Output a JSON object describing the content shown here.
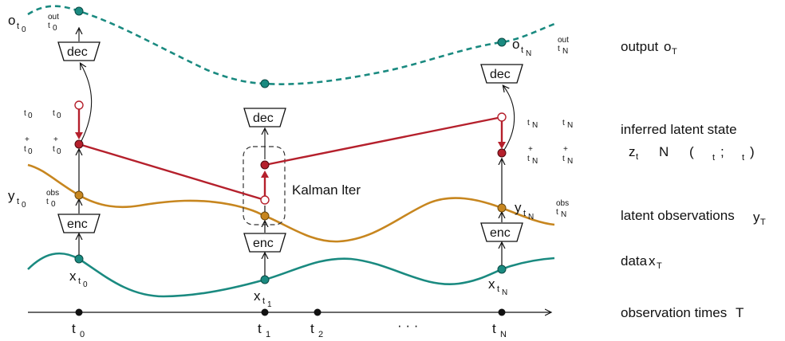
{
  "colors": {
    "output_curve": "#1a8a80",
    "output_dot": "#1a8a80",
    "latent_obs_curve": "#c7861f",
    "latent_obs_dot": "#c7861f",
    "data_curve": "#1a8a80",
    "data_dot": "#1a8a80",
    "kalman": "#b5202c",
    "axis": "#111111"
  },
  "legend_rows": {
    "output": "output",
    "output_sym": "o",
    "output_sub": "T",
    "inferred": "inferred latent state",
    "inferred_formula_z": "z",
    "inferred_formula_t": "t",
    "inferred_formula_N": "N",
    "inferred_formula_lp": "(",
    "inferred_formula_sub1": "t",
    "inferred_formula_semi": ";",
    "inferred_formula_sub2": "t",
    "inferred_formula_rp": ")",
    "latent_obs": "latent observations",
    "latent_obs_sym": "y",
    "latent_obs_sub": "T",
    "data": "data",
    "data_sym": "x",
    "data_sub": "T",
    "times": "observation times",
    "times_sym": "T"
  },
  "boxes": {
    "dec": "dec",
    "enc": "enc"
  },
  "kalman_label": "Kalman  lter",
  "ellipsis": "· · ·",
  "time_labels": {
    "t0": "t",
    "t0_sub": "0",
    "t1": "t",
    "t1_sub": "1",
    "t2": "t",
    "t2_sub": "2",
    "tN": "t",
    "tN_sub": "N"
  },
  "node_labels": {
    "o_t0_o": "o",
    "o_t0_t": "t",
    "o_t0_0": "0",
    "o_t0_out": "out",
    "o_t0_tsub": "t",
    "o_t0_tsub0": "0",
    "o_tN_o": "o",
    "o_tN_t": "t",
    "o_tN_N": "N",
    "o_tN_out": "out",
    "o_tN_tsub": "t",
    "o_tN_tsubN": "N",
    "y_t0_y": "y",
    "y_t0_t": "t",
    "y_t0_0": "0",
    "y_t0_obs": "obs",
    "y_t0_tsub": "t",
    "y_t0_tsub0": "0",
    "y_tN_y": "y",
    "y_tN_t": "t",
    "y_tN_N": "N",
    "y_tN_obs": "obs",
    "y_tN_tsub": "t",
    "y_tN_tsubN": "N",
    "x_t0_x": "x",
    "x_t0_t": "t",
    "x_t0_0": "0",
    "x_t1_x": "x",
    "x_t1_t": "t",
    "x_t1_1": "1",
    "x_tN_x": "x",
    "x_tN_t": "t",
    "x_tN_N": "N",
    "lat_t0_a": "t",
    "lat_t0_a_sub": "0",
    "lat_t0_b": "t",
    "lat_t0_b_sub": "0",
    "lat_t0_plus_a": "+",
    "lat_t0_c": "t",
    "lat_t0_c_sub": "0",
    "lat_t0_plus_b": "+",
    "lat_t0_d": "t",
    "lat_t0_d_sub": "0",
    "lat_tN_a": "t",
    "lat_tN_a_sub": "N",
    "lat_tN_b": "t",
    "lat_tN_b_sub": "N",
    "lat_tN_plus_a": "+",
    "lat_tN_c": "t",
    "lat_tN_c_sub": "N",
    "lat_tN_plus_b": "+",
    "lat_tN_d": "t",
    "lat_tN_d_sub": "N"
  }
}
